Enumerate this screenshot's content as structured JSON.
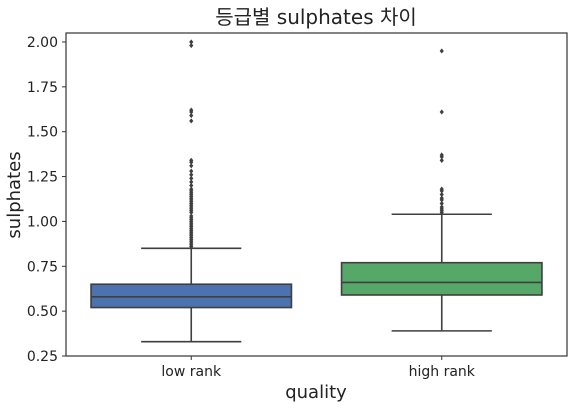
{
  "chart_data": {
    "type": "boxplot",
    "title": "등급별 sulphates 차이",
    "xlabel": "quality",
    "ylabel": "sulphates",
    "ylim": [
      0.25,
      2.05
    ],
    "yticks": [
      "0.25",
      "0.50",
      "0.75",
      "1.00",
      "1.25",
      "1.50",
      "1.75",
      "2.00"
    ],
    "categories": [
      "low rank",
      "high rank"
    ],
    "grid": false,
    "colors": {
      "low rank": "#4c72b0",
      "high rank": "#55a868",
      "edge": "#3f3f3f"
    },
    "boxes": [
      {
        "name": "low rank",
        "whisker_low": 0.33,
        "q1": 0.52,
        "median": 0.58,
        "q3": 0.65,
        "whisker_high": 0.85,
        "outliers": [
          0.86,
          0.87,
          0.88,
          0.89,
          0.9,
          0.91,
          0.92,
          0.93,
          0.94,
          0.95,
          0.96,
          0.97,
          0.98,
          0.99,
          1.0,
          1.01,
          1.02,
          1.03,
          1.05,
          1.06,
          1.07,
          1.08,
          1.09,
          1.1,
          1.11,
          1.12,
          1.13,
          1.14,
          1.15,
          1.16,
          1.17,
          1.18,
          1.2,
          1.22,
          1.24,
          1.26,
          1.28,
          1.31,
          1.33,
          1.34,
          1.56,
          1.59,
          1.61,
          1.62,
          1.98,
          2.0
        ]
      },
      {
        "name": "high rank",
        "whisker_low": 0.39,
        "q1": 0.59,
        "median": 0.66,
        "q3": 0.77,
        "whisker_high": 1.04,
        "outliers": [
          1.05,
          1.06,
          1.07,
          1.08,
          1.1,
          1.12,
          1.13,
          1.15,
          1.17,
          1.18,
          1.34,
          1.36,
          1.37,
          1.61,
          1.95
        ]
      }
    ]
  }
}
